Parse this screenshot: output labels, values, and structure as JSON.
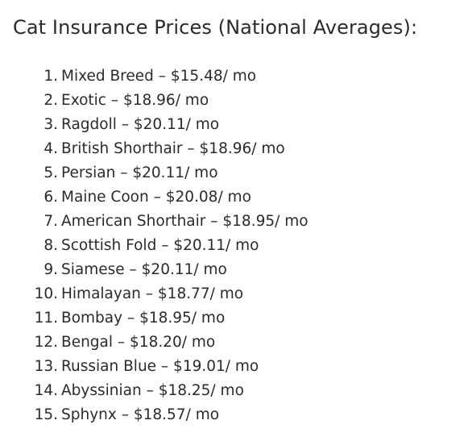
{
  "title": "Cat Insurance Prices (National Averages):",
  "items": [
    {
      "num": "1.",
      "text": "Mixed Breed – $15.48/ mo"
    },
    {
      "num": "2.",
      "text": "Exotic – $18.96/ mo"
    },
    {
      "num": "3.",
      "text": "Ragdoll – $20.11/ mo"
    },
    {
      "num": "4.",
      "text": "British Shorthair – $18.96/ mo"
    },
    {
      "num": "5.",
      "text": "Persian – $20.11/ mo"
    },
    {
      "num": "6.",
      "text": "Maine Coon – $20.08/ mo"
    },
    {
      "num": "7.",
      "text": "American Shorthair – $18.95/ mo"
    },
    {
      "num": "8.",
      "text": "Scottish Fold – $20.11/ mo"
    },
    {
      "num": "9.",
      "text": "Siamese – $20.11/ mo"
    },
    {
      "num": "10.",
      "text": "Himalayan – $18.77/ mo"
    },
    {
      "num": "11.",
      "text": "Bombay – $18.95/ mo"
    },
    {
      "num": "12.",
      "text": "Bengal – $18.20/ mo"
    },
    {
      "num": "13.",
      "text": "Russian Blue – $19.01/ mo"
    },
    {
      "num": "14.",
      "text": "Abyssinian – $18.25/ mo"
    },
    {
      "num": "15.",
      "text": "Sphynx – $18.57/ mo"
    }
  ]
}
